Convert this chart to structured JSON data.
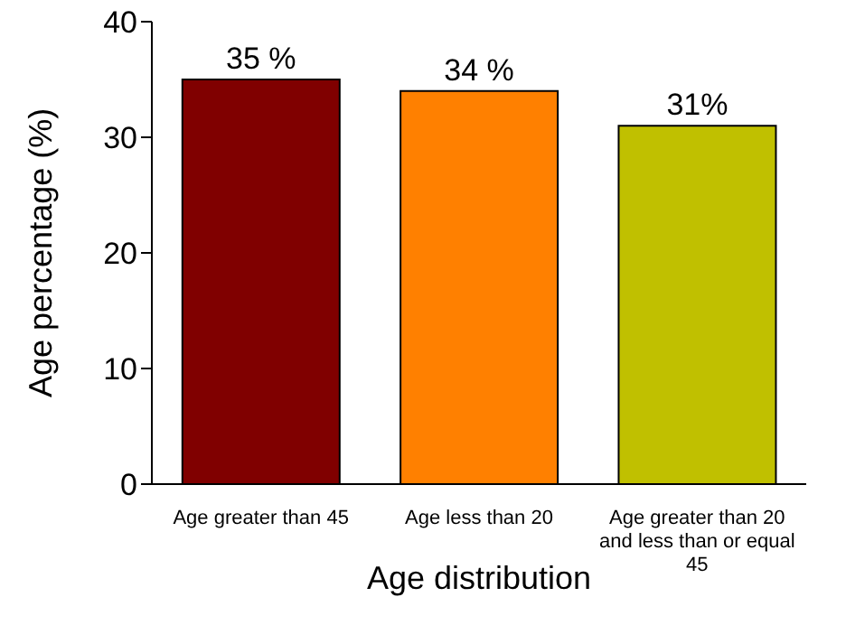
{
  "chart_data": {
    "type": "bar",
    "xlabel": "Age distribution",
    "ylabel": "Age percentage (%)",
    "categories": [
      "Age greater than 45",
      "Age less than 20",
      "Age greater than 20 and less than or equal 45"
    ],
    "values": [
      35,
      34,
      31
    ],
    "colors": [
      "#800000",
      "#ff8000",
      "#c0c000"
    ],
    "value_labels": [
      "35 %",
      "34 %",
      "31%"
    ],
    "ylim": [
      0,
      40
    ],
    "yticks": [
      0,
      10,
      20,
      30,
      40
    ],
    "grid": false,
    "legend": false
  }
}
